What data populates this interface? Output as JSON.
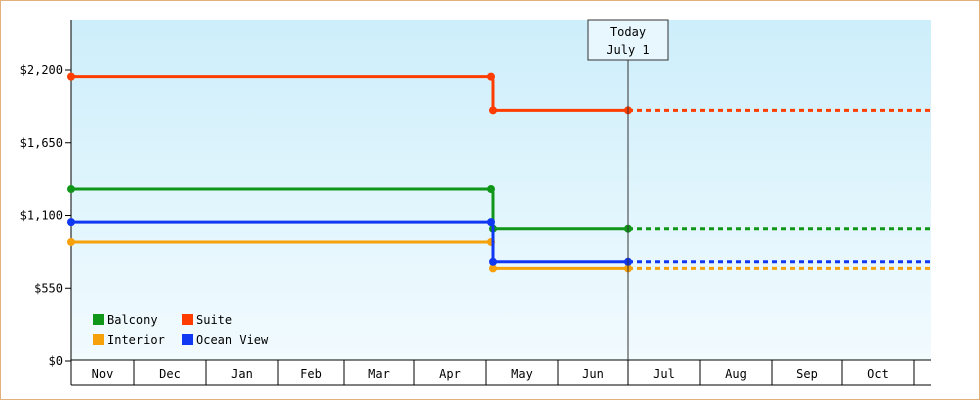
{
  "chart_data": {
    "type": "line",
    "title": "",
    "xlabel": "",
    "ylabel": "",
    "x_categories": [
      "Nov",
      "Dec",
      "Jan",
      "Feb",
      "Mar",
      "Apr",
      "May",
      "Jun",
      "Jul",
      "Aug",
      "Sep",
      "Oct"
    ],
    "ylim": [
      0,
      2200
    ],
    "yticks": [
      0,
      550,
      1100,
      1650,
      2200
    ],
    "ytick_labels": [
      "$0",
      "$550",
      "$1,100",
      "$1,650",
      "$2,200"
    ],
    "grid": false,
    "legend_placement": "bottom-left",
    "today_marker": {
      "line1": "Today",
      "line2": "July 1",
      "month_index": 8
    },
    "series": [
      {
        "name": "Balcony",
        "color": "#109618",
        "before": 1300,
        "after": 1000,
        "change_month_index": 6
      },
      {
        "name": "Suite",
        "color": "#ff3d00",
        "before": 2150,
        "after": 1895,
        "change_month_index": 6
      },
      {
        "name": "Interior",
        "color": "#f7a10a",
        "before": 900,
        "after": 700,
        "change_month_index": 6
      },
      {
        "name": "Ocean View",
        "color": "#1038f2",
        "before": 1050,
        "after": 750,
        "change_month_index": 6
      }
    ]
  }
}
